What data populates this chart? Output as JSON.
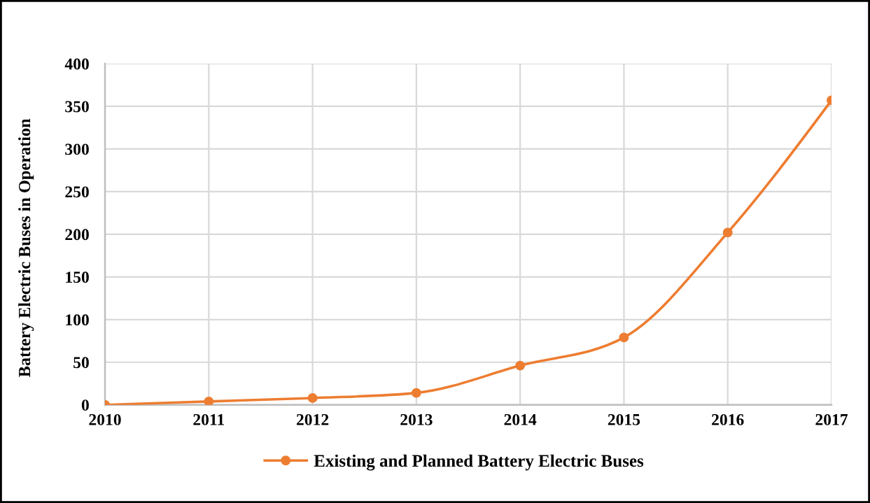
{
  "chart_data": {
    "type": "line",
    "ylabel": "Battery Electric Buses in Operation",
    "x": [
      2010,
      2011,
      2012,
      2013,
      2014,
      2015,
      2016,
      2017
    ],
    "series": [
      {
        "name": "Existing and Planned Battery Electric Buses",
        "color": "#ed7d31",
        "values": [
          0,
          4,
          8,
          14,
          46,
          79,
          202,
          357
        ]
      }
    ],
    "xlim": [
      2010,
      2017
    ],
    "xticks": [
      2010,
      2011,
      2012,
      2013,
      2014,
      2015,
      2016,
      2017
    ],
    "ylim": [
      0,
      400
    ],
    "yticks": [
      0,
      50,
      100,
      150,
      200,
      250,
      300,
      350,
      400
    ],
    "grid": true,
    "legend": "bottom",
    "marker": "circle",
    "line_style": "solid"
  }
}
